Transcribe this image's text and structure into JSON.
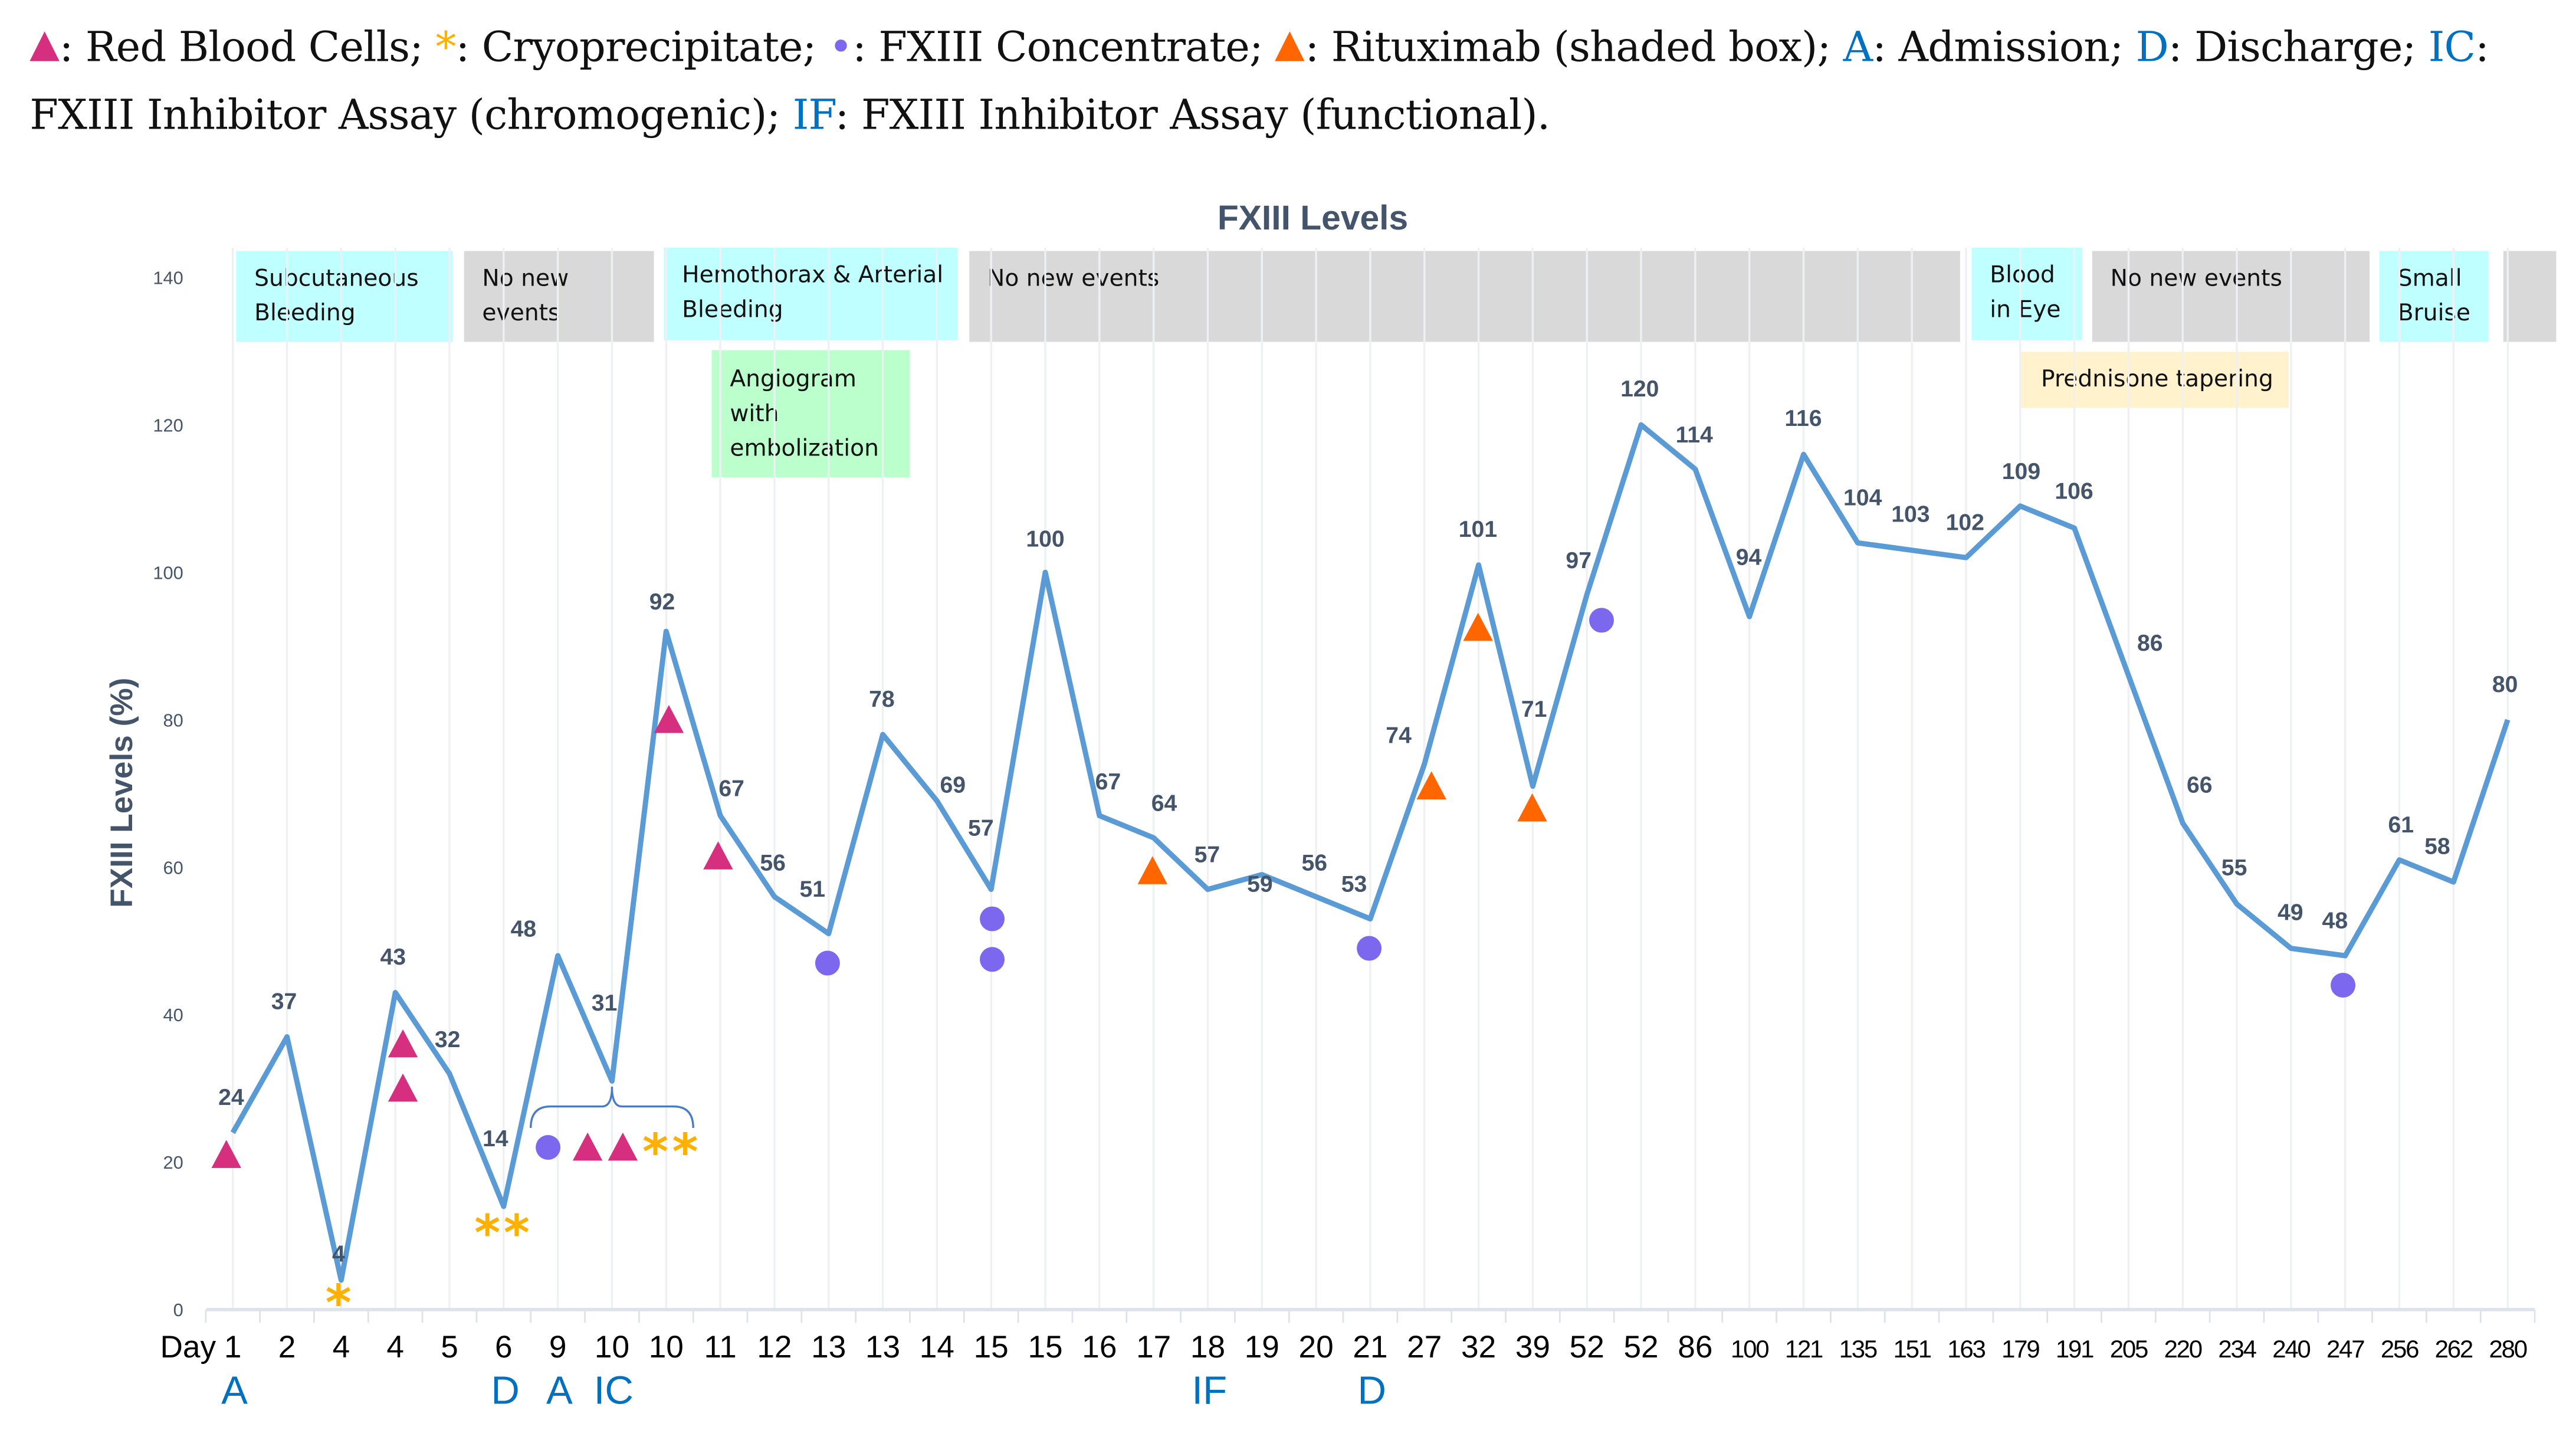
{
  "legend": {
    "rbc": ": Red Blood Cells; ",
    "cryo_symbol": "*",
    "cryo": ": Cryoprecipitate; ",
    "fxiii_symbol": "•",
    "fxiii": ": FXIII Concentrate; ",
    "rituximab": ": Rituximab (shaded box); ",
    "a_symbol": "A",
    "a": ": Admission; ",
    "d_symbol": "D",
    "d": ": Discharge; ",
    "ic_symbol": "IC",
    "ic": ": FXIII Inhibitor Assay (chromogenic); ",
    "if_symbol": "IF",
    "if": ": FXIII Inhibitor Assay (functional)."
  },
  "colors": {
    "line": "#5b9bd5",
    "rbc": "#d62f7f",
    "cryo": "#ffb000",
    "fxiii": "#7b68ee",
    "rituximab": "#ff6600",
    "annotation": "#0070c0",
    "label": "#44546a"
  },
  "events": [
    {
      "text": "Subcutaneous Bleeding",
      "color": "cyan"
    },
    {
      "text": "No new events",
      "color": "gray"
    },
    {
      "text": "Hemothorax & Arterial Bleeding",
      "color": "cyan"
    },
    {
      "text": "No new events",
      "color": "gray"
    },
    {
      "text": "Angiogram with embolization",
      "color": "green"
    },
    {
      "text": "Blood in Eye",
      "color": "cyan"
    },
    {
      "text": "No new events",
      "color": "gray"
    },
    {
      "text": "Small Bruise",
      "color": "cyan"
    },
    {
      "text": "",
      "color": "gray"
    },
    {
      "text": "Prednisone tapering",
      "color": "yellow"
    }
  ],
  "chart_data": {
    "type": "line",
    "title": "FXIII Levels",
    "ylabel": "FXIII Levels (%)",
    "xlabel_prefix": "Day",
    "ylim": [
      0,
      140
    ],
    "yticks": [
      0,
      20,
      40,
      60,
      80,
      100,
      120,
      140
    ],
    "grid": "vertical",
    "categories": [
      "1",
      "2",
      "4",
      "4",
      "5",
      "6",
      "9",
      "10",
      "10",
      "11",
      "12",
      "13",
      "13",
      "14",
      "15",
      "15",
      "16",
      "17",
      "18",
      "19",
      "20",
      "21",
      "27",
      "32",
      "39",
      "52",
      "52",
      "86",
      "100",
      "121",
      "135",
      "151",
      "163",
      "179",
      "191",
      "205",
      "220",
      "234",
      "240",
      "247",
      "256",
      "262",
      "280"
    ],
    "values": [
      24,
      37,
      4,
      43,
      32,
      14,
      48,
      31,
      92,
      67,
      56,
      51,
      78,
      69,
      57,
      100,
      67,
      64,
      57,
      59,
      56,
      53,
      74,
      101,
      71,
      97,
      120,
      114,
      94,
      116,
      104,
      103,
      102,
      109,
      106,
      86,
      66,
      55,
      49,
      48,
      61,
      58,
      80
    ],
    "annotations": [
      {
        "index": 0,
        "text": "A"
      },
      {
        "index": 5,
        "text": "D"
      },
      {
        "index": 6,
        "text": "A"
      },
      {
        "index": 7,
        "text": "IC"
      },
      {
        "index": 18,
        "text": "IF"
      },
      {
        "index": 21,
        "text": "D"
      }
    ],
    "markers": [
      {
        "type": "rbc",
        "x_index": -0.12,
        "y": 21
      },
      {
        "type": "rbc",
        "x_index": 3.14,
        "y": 36
      },
      {
        "type": "rbc",
        "x_index": 3.14,
        "y": 30
      },
      {
        "type": "rbc",
        "x_index": 6.55,
        "y": 22
      },
      {
        "type": "rbc",
        "x_index": 7.2,
        "y": 22
      },
      {
        "type": "rbc",
        "x_index": 8.05,
        "y": 80
      },
      {
        "type": "rbc",
        "x_index": 8.96,
        "y": 61.5
      },
      {
        "type": "cryo",
        "x_index": 1.95,
        "y": 1.5
      },
      {
        "type": "cryo",
        "x_index": 4.7,
        "y": 11
      },
      {
        "type": "cryo",
        "x_index": 5.24,
        "y": 11
      },
      {
        "type": "cryo",
        "x_index": 7.8,
        "y": 22
      },
      {
        "type": "cryo",
        "x_index": 8.35,
        "y": 22
      },
      {
        "type": "fxiii",
        "x_index": 5.82,
        "y": 22
      },
      {
        "type": "fxiii",
        "x_index": 10.98,
        "y": 47
      },
      {
        "type": "fxiii",
        "x_index": 14.02,
        "y": 53
      },
      {
        "type": "fxiii",
        "x_index": 14.02,
        "y": 47.5
      },
      {
        "type": "fxiii",
        "x_index": 20.98,
        "y": 49
      },
      {
        "type": "fxiii",
        "x_index": 25.27,
        "y": 93.5
      },
      {
        "type": "fxiii",
        "x_index": 38.96,
        "y": 44
      },
      {
        "type": "rituximab",
        "x_index": 16.98,
        "y": 59.5
      },
      {
        "type": "rituximab",
        "x_index": 22.13,
        "y": 71
      },
      {
        "type": "rituximab",
        "x_index": 22.99,
        "y": 92.5
      },
      {
        "type": "rituximab",
        "x_index": 23.99,
        "y": 68
      }
    ]
  }
}
